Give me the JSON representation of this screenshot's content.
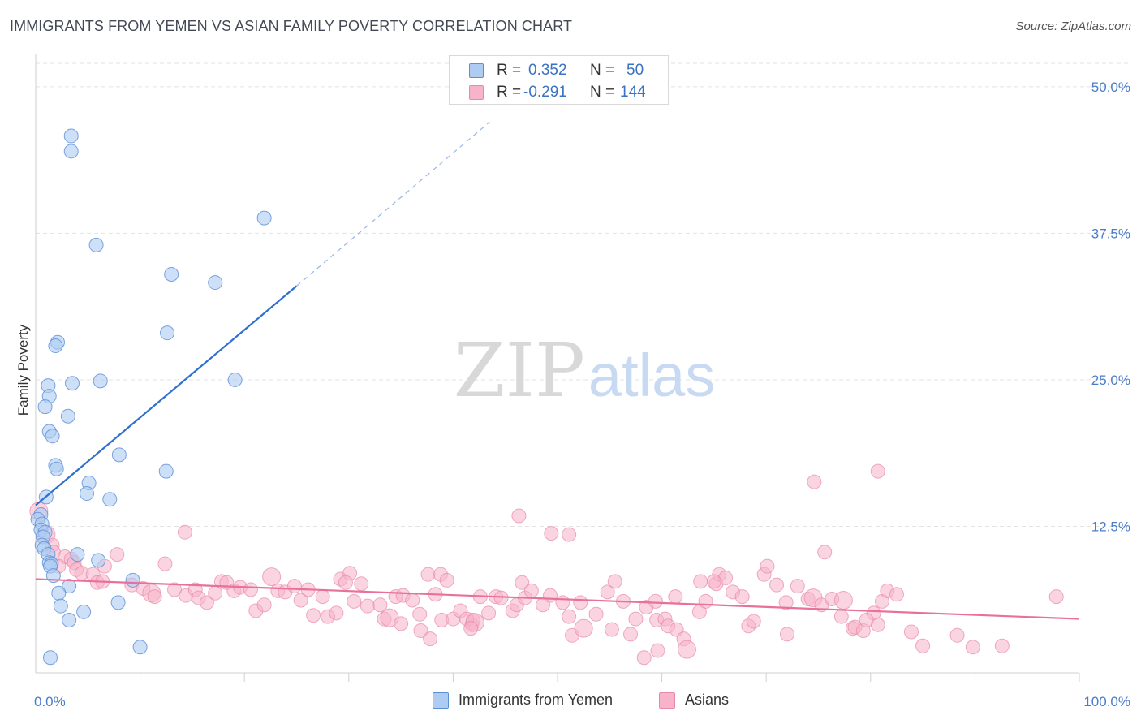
{
  "header": {
    "title": "IMMIGRANTS FROM YEMEN VS ASIAN FAMILY POVERTY CORRELATION CHART",
    "source": "Source: ZipAtlas.com"
  },
  "legend_top": {
    "rows": [
      {
        "r_label": "R =",
        "r_value": "0.352",
        "n_label": "N =",
        "n_value": "50"
      },
      {
        "r_label": "R =",
        "r_value": "-0.291",
        "n_label": "N =",
        "n_value": "144"
      }
    ]
  },
  "watermark": {
    "zip": "ZIP",
    "atlas": "atlas"
  },
  "colors": {
    "blue_fill": "#aecbf2",
    "blue_stroke": "#5b8fd6",
    "blue_line": "#2f6fd0",
    "pink_fill": "#f6b3c9",
    "pink_stroke": "#e889a8",
    "pink_line": "#e8709b",
    "tick_text": "#4a7cc7",
    "grid": "#e3e3e3"
  },
  "chart_data": {
    "type": "scatter",
    "title": "IMMIGRANTS FROM YEMEN VS ASIAN FAMILY POVERTY CORRELATION CHART",
    "xlabel": "",
    "ylabel": "Family Poverty",
    "xlim": [
      0,
      100
    ],
    "ylim": [
      0,
      52
    ],
    "x_tick_labels": [
      {
        "value": 0,
        "label": "0.0%"
      },
      {
        "value": 100,
        "label": "100.0%"
      }
    ],
    "y_ticks": [
      {
        "value": 12.5,
        "label": "12.5%"
      },
      {
        "value": 25.0,
        "label": "25.0%"
      },
      {
        "value": 37.5,
        "label": "37.5%"
      },
      {
        "value": 50.0,
        "label": "50.0%"
      }
    ],
    "x_minor_ticks": [
      10,
      20,
      30,
      40,
      50,
      60,
      70,
      80,
      90,
      100
    ],
    "series": [
      {
        "name": "Immigrants from Yemen",
        "color": "#aecbf2",
        "R": 0.352,
        "N": 50,
        "trend": {
          "x0": 0,
          "y0": 14.3,
          "x1": 25.0,
          "y1": 33.0,
          "dash_to_x": 43.5,
          "dash_to_y": 47.0
        },
        "points": [
          [
            3.4,
            45.8
          ],
          [
            3.4,
            44.5
          ],
          [
            21.9,
            38.8
          ],
          [
            5.8,
            36.5
          ],
          [
            13.0,
            34.0
          ],
          [
            17.2,
            33.3
          ],
          [
            2.1,
            28.2
          ],
          [
            1.9,
            27.9
          ],
          [
            12.6,
            29.0
          ],
          [
            1.2,
            24.5
          ],
          [
            3.5,
            24.7
          ],
          [
            6.2,
            24.9
          ],
          [
            19.1,
            25.0
          ],
          [
            1.3,
            23.6
          ],
          [
            0.9,
            22.7
          ],
          [
            3.1,
            21.9
          ],
          [
            1.3,
            20.6
          ],
          [
            1.6,
            20.2
          ],
          [
            8.0,
            18.6
          ],
          [
            1.9,
            17.7
          ],
          [
            2.0,
            17.4
          ],
          [
            12.5,
            17.2
          ],
          [
            5.1,
            16.2
          ],
          [
            4.9,
            15.3
          ],
          [
            7.1,
            14.8
          ],
          [
            1.0,
            15.0
          ],
          [
            0.5,
            13.5
          ],
          [
            0.2,
            13.1
          ],
          [
            0.6,
            12.7
          ],
          [
            0.5,
            12.2
          ],
          [
            0.9,
            12.0
          ],
          [
            0.7,
            11.6
          ],
          [
            0.6,
            10.9
          ],
          [
            0.8,
            10.6
          ],
          [
            1.2,
            10.1
          ],
          [
            4.0,
            10.1
          ],
          [
            6.0,
            9.6
          ],
          [
            1.3,
            9.4
          ],
          [
            1.5,
            9.3
          ],
          [
            1.4,
            9.1
          ],
          [
            9.3,
            7.9
          ],
          [
            1.7,
            8.3
          ],
          [
            3.2,
            7.4
          ],
          [
            2.2,
            6.8
          ],
          [
            2.4,
            5.7
          ],
          [
            4.6,
            5.2
          ],
          [
            3.2,
            4.5
          ],
          [
            7.9,
            6.0
          ],
          [
            10.0,
            2.2
          ],
          [
            1.4,
            1.3
          ]
        ]
      },
      {
        "name": "Asians",
        "color": "#f6b3c9",
        "R": -0.291,
        "N": 144,
        "trend": {
          "x0": 0,
          "y0": 8.0,
          "x1": 100,
          "y1": 4.6
        },
        "points": [
          [
            0.3,
            13.8
          ],
          [
            1.0,
            11.8
          ],
          [
            1.6,
            10.9
          ],
          [
            1.7,
            10.3
          ],
          [
            2.8,
            9.9
          ],
          [
            3.4,
            9.7
          ],
          [
            3.7,
            9.4
          ],
          [
            2.2,
            9.1
          ],
          [
            3.9,
            8.8
          ],
          [
            4.4,
            8.5
          ],
          [
            5.5,
            8.4
          ],
          [
            6.6,
            9.1
          ],
          [
            7.8,
            10.1
          ],
          [
            5.9,
            7.7
          ],
          [
            6.4,
            7.8
          ],
          [
            9.2,
            7.5
          ],
          [
            10.3,
            7.2
          ],
          [
            11.1,
            6.8
          ],
          [
            12.4,
            9.3
          ],
          [
            11.4,
            6.5
          ],
          [
            13.3,
            7.1
          ],
          [
            14.4,
            6.6
          ],
          [
            14.3,
            12.0
          ],
          [
            15.3,
            7.1
          ],
          [
            15.6,
            6.4
          ],
          [
            16.4,
            6.0
          ],
          [
            17.2,
            6.8
          ],
          [
            17.8,
            7.8
          ],
          [
            18.3,
            7.7
          ],
          [
            19.0,
            7.0
          ],
          [
            19.6,
            7.3
          ],
          [
            20.6,
            7.1
          ],
          [
            21.1,
            5.3
          ],
          [
            21.9,
            5.8
          ],
          [
            22.6,
            8.2
          ],
          [
            23.2,
            7.0
          ],
          [
            23.9,
            6.9
          ],
          [
            24.8,
            7.4
          ],
          [
            25.4,
            6.2
          ],
          [
            26.1,
            7.1
          ],
          [
            26.6,
            4.9
          ],
          [
            27.5,
            6.5
          ],
          [
            28.0,
            4.8
          ],
          [
            28.8,
            5.1
          ],
          [
            29.2,
            8.0
          ],
          [
            30.1,
            8.5
          ],
          [
            29.7,
            7.7
          ],
          [
            31.2,
            7.6
          ],
          [
            31.8,
            5.7
          ],
          [
            33.0,
            5.8
          ],
          [
            33.4,
            4.6
          ],
          [
            33.9,
            4.7
          ],
          [
            34.5,
            6.5
          ],
          [
            35.0,
            4.2
          ],
          [
            35.2,
            6.6
          ],
          [
            36.1,
            6.2
          ],
          [
            36.8,
            5.0
          ],
          [
            36.9,
            3.6
          ],
          [
            37.6,
            8.4
          ],
          [
            38.8,
            8.4
          ],
          [
            38.3,
            6.7
          ],
          [
            38.9,
            4.5
          ],
          [
            39.4,
            7.9
          ],
          [
            40.0,
            4.6
          ],
          [
            40.7,
            5.3
          ],
          [
            41.8,
            4.1
          ],
          [
            41.9,
            4.5
          ],
          [
            41.3,
            4.6
          ],
          [
            42.1,
            4.3
          ],
          [
            41.7,
            3.8
          ],
          [
            43.4,
            5.1
          ],
          [
            42.6,
            6.5
          ],
          [
            44.1,
            6.5
          ],
          [
            44.6,
            6.4
          ],
          [
            45.7,
            5.3
          ],
          [
            46.1,
            5.8
          ],
          [
            46.6,
            7.7
          ],
          [
            46.9,
            6.4
          ],
          [
            47.5,
            7.0
          ],
          [
            48.6,
            5.8
          ],
          [
            49.4,
            11.9
          ],
          [
            49.3,
            6.6
          ],
          [
            50.5,
            6.0
          ],
          [
            51.1,
            4.8
          ],
          [
            51.4,
            3.2
          ],
          [
            52.5,
            3.8
          ],
          [
            52.2,
            6.0
          ],
          [
            53.7,
            5.0
          ],
          [
            55.2,
            3.7
          ],
          [
            54.8,
            6.9
          ],
          [
            55.5,
            7.8
          ],
          [
            56.3,
            6.1
          ],
          [
            57.0,
            3.3
          ],
          [
            57.5,
            4.6
          ],
          [
            58.5,
            5.6
          ],
          [
            59.4,
            6.1
          ],
          [
            59.5,
            4.5
          ],
          [
            60.3,
            4.6
          ],
          [
            60.6,
            4.0
          ],
          [
            61.4,
            3.7
          ],
          [
            61.3,
            6.5
          ],
          [
            62.1,
            2.9
          ],
          [
            62.4,
            2.0
          ],
          [
            63.6,
            5.2
          ],
          [
            64.2,
            6.1
          ],
          [
            65.2,
            7.6
          ],
          [
            65.5,
            8.4
          ],
          [
            66.1,
            8.1
          ],
          [
            65.0,
            7.8
          ],
          [
            66.8,
            6.9
          ],
          [
            67.7,
            6.5
          ],
          [
            68.3,
            4.0
          ],
          [
            68.8,
            4.4
          ],
          [
            69.8,
            8.4
          ],
          [
            70.1,
            9.1
          ],
          [
            71.0,
            7.5
          ],
          [
            71.9,
            6.0
          ],
          [
            73.0,
            7.4
          ],
          [
            74.0,
            6.3
          ],
          [
            74.5,
            6.4
          ],
          [
            75.6,
            10.3
          ],
          [
            75.3,
            5.8
          ],
          [
            76.3,
            6.3
          ],
          [
            77.2,
            4.8
          ],
          [
            78.3,
            3.8
          ],
          [
            78.5,
            3.9
          ],
          [
            79.3,
            3.6
          ],
          [
            80.3,
            5.1
          ],
          [
            80.7,
            4.1
          ],
          [
            81.1,
            6.1
          ],
          [
            81.6,
            7.0
          ],
          [
            82.5,
            6.7
          ],
          [
            74.6,
            16.3
          ],
          [
            80.7,
            17.2
          ],
          [
            51.1,
            11.8
          ],
          [
            46.3,
            13.4
          ],
          [
            77.4,
            6.2
          ],
          [
            85.0,
            2.3
          ],
          [
            89.8,
            2.2
          ],
          [
            88.3,
            3.2
          ],
          [
            92.6,
            2.3
          ],
          [
            97.8,
            6.5
          ],
          [
            30.5,
            6.1
          ],
          [
            58.3,
            1.3
          ],
          [
            59.6,
            1.9
          ],
          [
            63.7,
            7.8
          ],
          [
            72.0,
            3.3
          ],
          [
            79.6,
            4.5
          ],
          [
            83.9,
            3.5
          ],
          [
            37.8,
            2.9
          ]
        ]
      }
    ]
  },
  "legend_bottom": {
    "items": [
      {
        "label": "Immigrants from Yemen"
      },
      {
        "label": "Asians"
      }
    ]
  }
}
